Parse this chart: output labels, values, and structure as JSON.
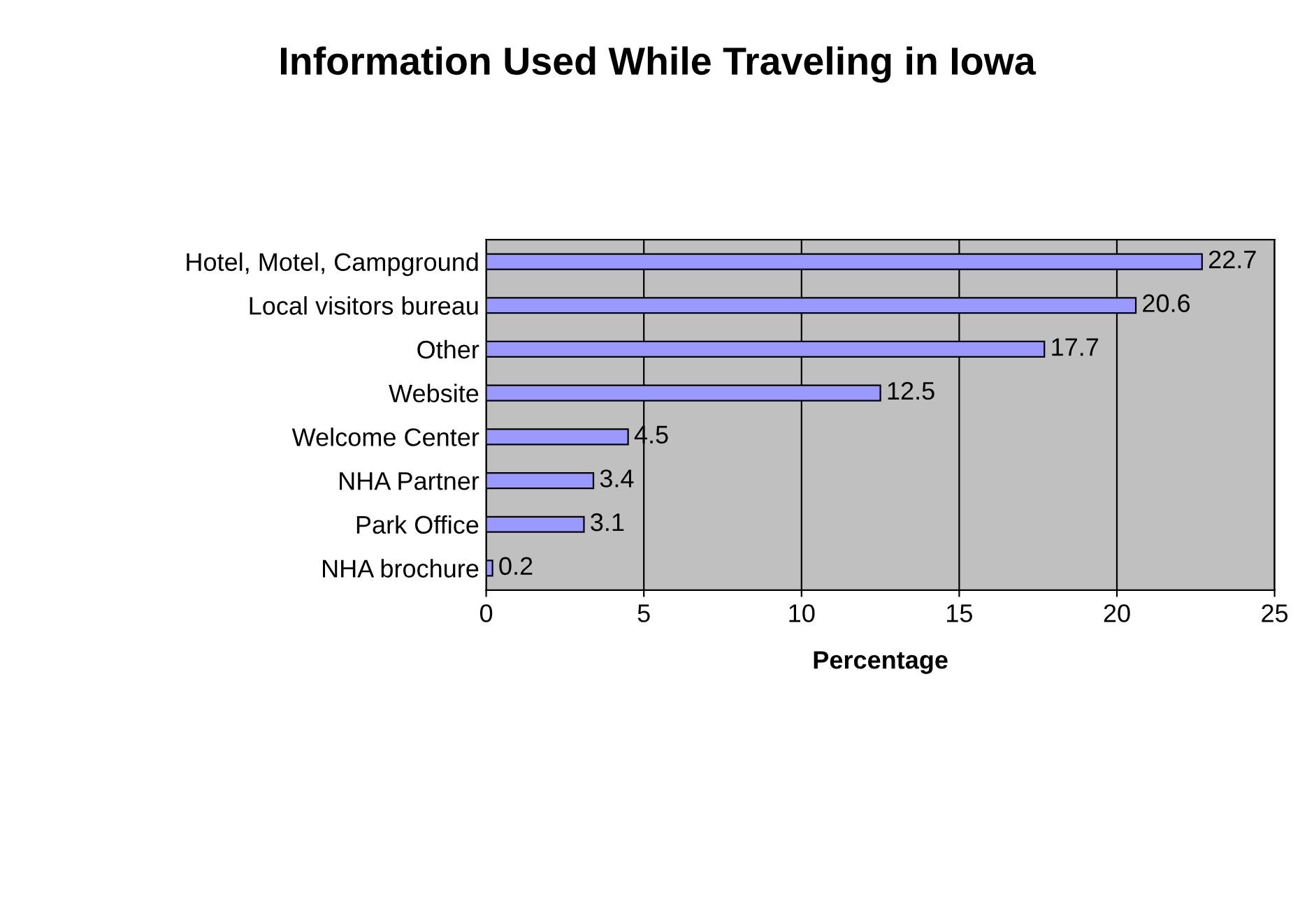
{
  "chart_data": {
    "type": "bar",
    "orientation": "horizontal",
    "title": "Information Used While Traveling in Iowa",
    "xlabel": "Percentage",
    "categories": [
      "Hotel, Motel, Campground",
      "Local visitors bureau",
      "Other",
      "Website",
      "Welcome Center",
      "NHA Partner",
      "Park Office",
      "NHA brochure"
    ],
    "values": [
      22.7,
      20.6,
      17.7,
      12.5,
      4.5,
      3.4,
      3.1,
      0.2
    ],
    "color": "#9999ff",
    "xlim": [
      0,
      25
    ],
    "xticks": [
      0,
      5,
      10,
      15,
      20,
      25
    ],
    "grid": "x",
    "data_labels": true,
    "legend": false
  }
}
